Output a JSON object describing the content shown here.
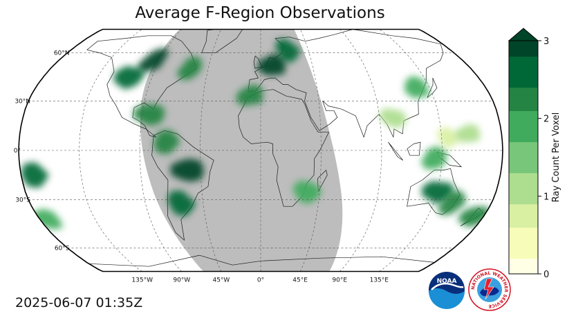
{
  "title": "Average F-Region Observations",
  "timestamp": "2025-06-07 01:35Z",
  "map": {
    "projection": "Robinson",
    "night_color": "#bdbdbd",
    "lat_labels": [
      "60°N",
      "30°N",
      "0°",
      "30°S",
      "60°S"
    ],
    "lon_labels": [
      "135°W",
      "90°W",
      "45°W",
      "0°",
      "45°E",
      "90°E",
      "135°E"
    ]
  },
  "colorbar": {
    "label": "Ray Count Per Voxel",
    "ticks": [
      "0",
      "1",
      "2",
      "3"
    ],
    "range": [
      0,
      3
    ],
    "extend": "max",
    "colors": [
      "#ffffe5",
      "#f7fcb9",
      "#d9f0a3",
      "#addd8e",
      "#78c679",
      "#41ab5d",
      "#238443",
      "#006837",
      "#004529"
    ]
  },
  "logos": {
    "noaa": {
      "text": "NOAA"
    },
    "nws": {
      "text": "NATIONAL WEATHER SERVICE"
    }
  },
  "chart_data": {
    "type": "heatmap",
    "title": "Average F-Region Observations",
    "colorbar_label": "Ray Count Per Voxel",
    "range": [
      0,
      3
    ],
    "regions": [
      {
        "lon": -95,
        "lat": 55,
        "value": 2.9
      },
      {
        "lon": -110,
        "lat": 45,
        "value": 2.7
      },
      {
        "lon": -60,
        "lat": 50,
        "value": 2.3
      },
      {
        "lon": -85,
        "lat": 22,
        "value": 2.4
      },
      {
        "lon": -70,
        "lat": 5,
        "value": 2.2
      },
      {
        "lon": -55,
        "lat": -12,
        "value": 2.9
      },
      {
        "lon": -62,
        "lat": -32,
        "value": 2.6
      },
      {
        "lon": 10,
        "lat": 52,
        "value": 2.9
      },
      {
        "lon": 25,
        "lat": 62,
        "value": 2.8
      },
      {
        "lon": -8,
        "lat": 33,
        "value": 2.1
      },
      {
        "lon": 35,
        "lat": -25,
        "value": 2.0
      },
      {
        "lon": 125,
        "lat": 38,
        "value": 1.9
      },
      {
        "lon": 100,
        "lat": 20,
        "value": 1.3
      },
      {
        "lon": 130,
        "lat": -5,
        "value": 2.0
      },
      {
        "lon": 135,
        "lat": -25,
        "value": 2.6
      },
      {
        "lon": 150,
        "lat": -32,
        "value": 2.3
      },
      {
        "lon": 172,
        "lat": -40,
        "value": 2.1
      },
      {
        "lon": -170,
        "lat": -15,
        "value": 2.5
      },
      {
        "lon": -175,
        "lat": -42,
        "value": 2.0
      },
      {
        "lon": 140,
        "lat": 8,
        "value": 0.9
      },
      {
        "lon": 155,
        "lat": 10,
        "value": 1.2
      }
    ]
  }
}
